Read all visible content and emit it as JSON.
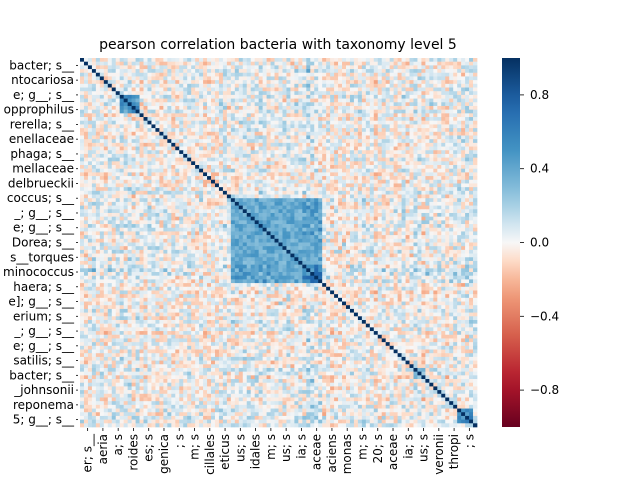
{
  "chart_data": {
    "type": "heatmap",
    "title": "pearson correlation bacteria with taxonomy level 5",
    "ylabels": [
      "bacter; s__",
      "ntocariosa",
      "e; g__; s__",
      "opprophilus",
      "rerella; s__",
      "enellaceae",
      "phaga; s__",
      "mellaceae",
      "delbrueckii",
      "coccus; s__",
      "_; g__; s__",
      "e; g__; s__",
      "Dorea; s__",
      "s__torques",
      "minococcus",
      "haera; s__",
      "e]; g__; s__",
      "erium; s__",
      "_; g__; s__",
      "e; g__; s__",
      "satilis; s__",
      "bacter; s__",
      "_johnsonii",
      "reponema",
      "5; g__; s__"
    ],
    "xlabels": [
      "er; s__",
      "aeria",
      "a; s",
      "roides",
      "es; s",
      "genica",
      "; s",
      "m; s",
      "cillales",
      "eticus",
      "us; s",
      "idales",
      "m; s",
      "us; s",
      "ia; s",
      "aceae",
      "aciens",
      "monas",
      "m; s",
      "20; s",
      "aceae",
      "ia; s",
      "us; s",
      "veronii",
      "thropi",
      "; s"
    ],
    "colorbar": {
      "ticks": [
        0.8,
        0.4,
        0.0,
        -0.4,
        -0.8
      ],
      "tick_labels": [
        "0.8",
        "0.4",
        "0.0",
        "−0.4",
        "−0.8"
      ],
      "vmin": -1.0,
      "vmax": 1.0,
      "colormap": "RdBu"
    },
    "n_variables": 100,
    "diagonal_value": 1.0,
    "typical_offdiagonal_range": [
      -0.25,
      0.35
    ],
    "strong_positive_blocks": [
      {
        "from": 10,
        "to": 14,
        "value": 0.55
      },
      {
        "from": 38,
        "to": 60,
        "value": 0.45
      },
      {
        "from": 56,
        "to": 60,
        "value": 0.7
      },
      {
        "from": 84,
        "to": 86,
        "value": 0.35
      },
      {
        "from": 95,
        "to": 98,
        "value": 0.6
      }
    ]
  }
}
